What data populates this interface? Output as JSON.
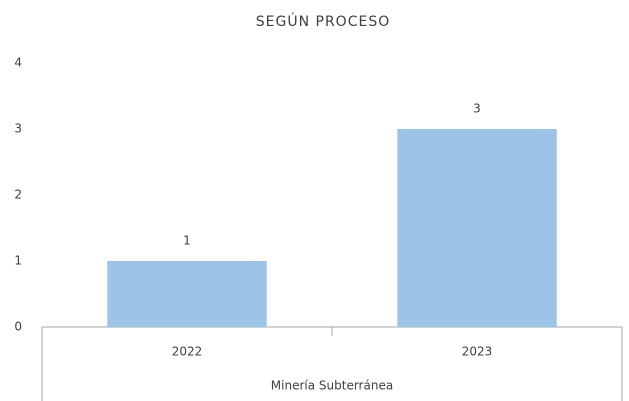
{
  "chart_data": {
    "type": "bar",
    "title": "SEGÚN PROCESO",
    "categories": [
      "2022",
      "2023"
    ],
    "values": [
      1,
      3
    ],
    "color": "#9dc3e6",
    "group_label": "Minería Subterránea",
    "ylim": [
      0,
      4
    ],
    "yticks": [
      0,
      1,
      2,
      3,
      4
    ],
    "grid": false
  }
}
